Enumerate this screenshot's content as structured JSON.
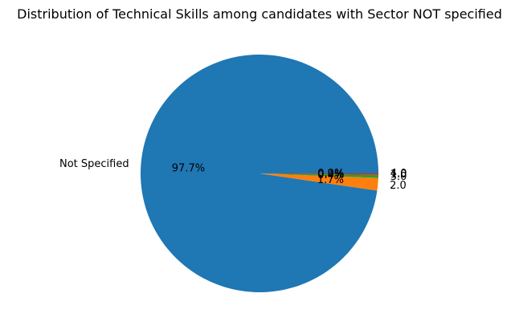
{
  "chart_data": {
    "type": "pie",
    "title": "Distribution of Technical Skills among candidates with Sector NOT specified",
    "slices": [
      {
        "label": "Not Specified",
        "pct": 97.7,
        "pct_label": "97.7%",
        "color": "#1f77b4"
      },
      {
        "label": "2.0",
        "pct": 1.7,
        "pct_label": "1.7%",
        "color": "#ff7f0e"
      },
      {
        "label": "3.0",
        "pct": 0.4,
        "pct_label": "0.4%",
        "color": "#2ca02c"
      },
      {
        "label": "1.0",
        "pct": 0.2,
        "pct_label": "0.2%",
        "color": "#d62728"
      },
      {
        "label": "4.0",
        "pct": 0.0,
        "pct_label": "0.0%",
        "color": "#9467bd"
      }
    ]
  }
}
